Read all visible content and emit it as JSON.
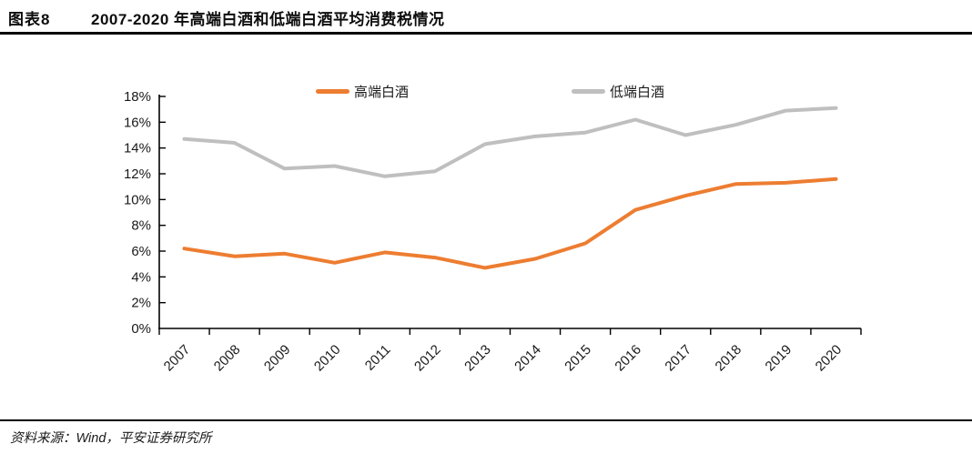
{
  "header": {
    "figure_label": "图表8",
    "title": "2007-2020 年高端白酒和低端白酒平均消费税情况"
  },
  "footer": {
    "source": "资料来源：Wind，平安证券研究所"
  },
  "chart_data": {
    "type": "line",
    "title": "2007-2020 年高端白酒和低端白酒平均消费税情况",
    "categories": [
      "2007",
      "2008",
      "2009",
      "2010",
      "2011",
      "2012",
      "2013",
      "2014",
      "2015",
      "2016",
      "2017",
      "2018",
      "2019",
      "2020"
    ],
    "series": [
      {
        "name": "高端白酒",
        "color": "#ED7D31",
        "values": [
          6.2,
          5.6,
          5.8,
          5.1,
          5.9,
          5.5,
          4.7,
          5.4,
          6.6,
          9.2,
          10.3,
          11.2,
          11.3,
          11.6
        ]
      },
      {
        "name": "低端白酒",
        "color": "#BFBFBF",
        "values": [
          14.7,
          14.4,
          12.4,
          12.6,
          11.8,
          12.2,
          14.3,
          14.9,
          15.2,
          16.2,
          15.0,
          15.8,
          16.9,
          17.1
        ]
      }
    ],
    "xlabel": "",
    "ylabel": "",
    "ylim": [
      0,
      18
    ],
    "ytick_step": 2,
    "y_tick_labels": [
      "0%",
      "2%",
      "4%",
      "6%",
      "8%",
      "10%",
      "12%",
      "14%",
      "16%",
      "18%"
    ],
    "grid": false,
    "legend_position": "top",
    "axis_color": "#000000",
    "tick_label_color": "#1a1a1a"
  }
}
